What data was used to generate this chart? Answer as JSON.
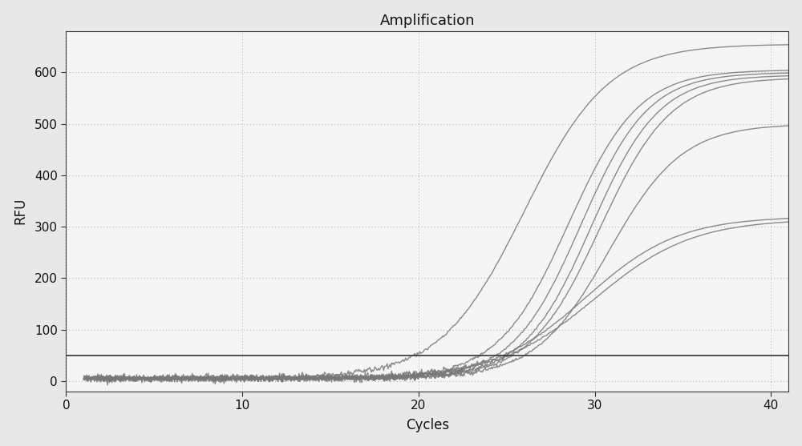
{
  "title": "Amplification",
  "xlabel": "Cycles",
  "ylabel": "RFU",
  "xlim": [
    0,
    41
  ],
  "ylim": [
    -20,
    680
  ],
  "xticks": [
    0,
    10,
    20,
    30,
    40
  ],
  "yticks": [
    0,
    100,
    200,
    300,
    400,
    500,
    600
  ],
  "background_color": "#e8e8e8",
  "plot_bg_color": "#f5f5f5",
  "grid_color": "#888888",
  "threshold_y": 50,
  "threshold_color": "#333333",
  "curve_color": "#777777",
  "curves": [
    {
      "midpoint": 26.0,
      "plateau": 655,
      "steepness": 0.42
    },
    {
      "midpoint": 28.5,
      "plateau": 605,
      "steepness": 0.5
    },
    {
      "midpoint": 29.2,
      "plateau": 600,
      "steepness": 0.52
    },
    {
      "midpoint": 29.8,
      "plateau": 595,
      "steepness": 0.52
    },
    {
      "midpoint": 30.3,
      "plateau": 590,
      "steepness": 0.5
    },
    {
      "midpoint": 30.8,
      "plateau": 500,
      "steepness": 0.48
    },
    {
      "midpoint": 29.5,
      "plateau": 320,
      "steepness": 0.38
    },
    {
      "midpoint": 30.0,
      "plateau": 315,
      "steepness": 0.36
    }
  ],
  "title_fontsize": 13,
  "label_fontsize": 12,
  "tick_fontsize": 11
}
